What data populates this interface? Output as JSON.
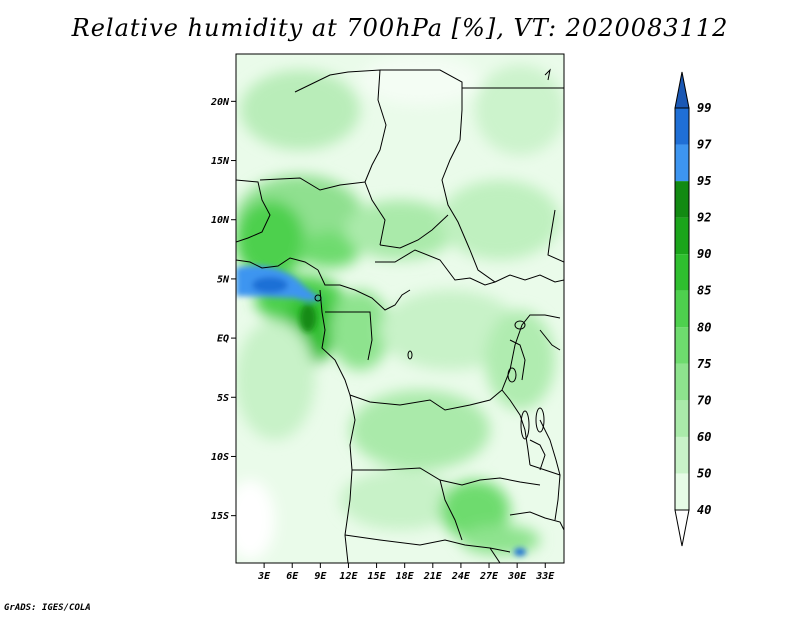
{
  "title": "Relative humidity at 700hPa [%], VT: 2020083112",
  "credit": "GrADS: IGES/COLA",
  "map": {
    "lon_range": [
      0,
      35
    ],
    "lat_range": [
      -19,
      24
    ],
    "lat_ticks": [
      "20N",
      "15N",
      "10N",
      "5N",
      "EQ",
      "5S",
      "10S",
      "15S"
    ],
    "lon_ticks": [
      "3E",
      "6E",
      "9E",
      "12E",
      "15E",
      "18E",
      "21E",
      "24E",
      "27E",
      "30E",
      "33E"
    ]
  },
  "legend": {
    "levels": [
      "40",
      "50",
      "60",
      "70",
      "75",
      "80",
      "85",
      "90",
      "92",
      "95",
      "97",
      "99"
    ],
    "colors": [
      "#ffffff",
      "#e6fbe6",
      "#c8f2c8",
      "#aaeaaa",
      "#8ee38e",
      "#6edb6e",
      "#4ed04e",
      "#2fbf2f",
      "#1ba51b",
      "#128a12",
      "#3d95f0",
      "#1f6fd6",
      "#1b58b4"
    ]
  }
}
